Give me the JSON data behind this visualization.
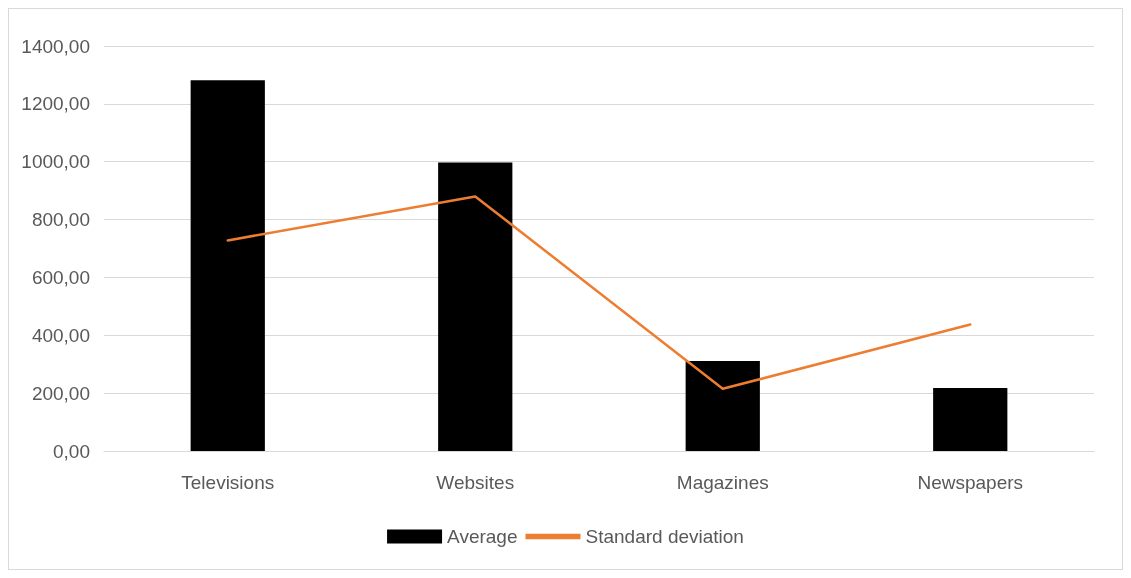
{
  "chart_data": {
    "type": "bar",
    "categories": [
      "Televisions",
      "Websites",
      "Magazines",
      "Newspapers"
    ],
    "series": [
      {
        "name": "Average",
        "color": "#000000",
        "values": [
          1282,
          997,
          311,
          218
        ]
      },
      {
        "name": "Standard deviation",
        "type": "line",
        "color": "#ed7d31",
        "values": [
          728,
          880,
          215,
          437
        ]
      }
    ],
    "ylim": [
      0,
      1400
    ],
    "yticks": [
      {
        "value": 0,
        "label": "0,00"
      },
      {
        "value": 200,
        "label": "200,00"
      },
      {
        "value": 400,
        "label": "400,00"
      },
      {
        "value": 600,
        "label": "600,00"
      },
      {
        "value": 800,
        "label": "800,00"
      },
      {
        "value": 1000,
        "label": "1000,00"
      },
      {
        "value": 1200,
        "label": "1200,00"
      },
      {
        "value": 1400,
        "label": "1400,00"
      }
    ],
    "grid": "y",
    "legend": "bottom",
    "marker": "none"
  }
}
